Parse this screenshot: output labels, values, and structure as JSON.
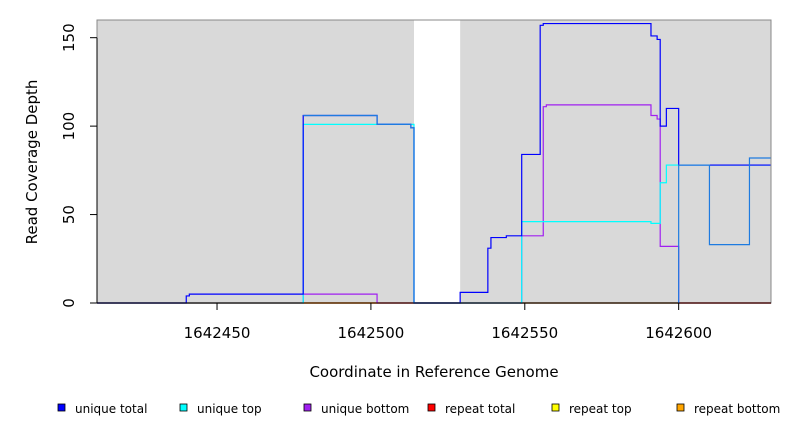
{
  "chart_data": {
    "type": "line",
    "title": "",
    "xlabel": "Coordinate in Reference Genome",
    "ylabel": "Read Coverage Depth",
    "xlim": [
      1642411,
      1642630
    ],
    "ylim": [
      0,
      160
    ],
    "xticks": [
      1642450,
      1642500,
      1642550,
      1642600
    ],
    "xtick_labels": [
      "1642450",
      "1642500",
      "1642550",
      "1642600"
    ],
    "yticks": [
      0,
      50,
      100,
      150
    ],
    "ytick_labels": [
      "0",
      "50",
      "100",
      "150"
    ],
    "grid": false,
    "legend_position": "bottom",
    "plot_background": "#d9d9d9",
    "gap_regions": [
      [
        1642514,
        1642529
      ]
    ],
    "series": [
      {
        "name": "unique total",
        "color": "#0000ff",
        "x": [
          1642411,
          1642440,
          1642441,
          1642478,
          1642502,
          1642513,
          1642514,
          1642529,
          1642538,
          1642539,
          1642544,
          1642549,
          1642555,
          1642556,
          1642591,
          1642593,
          1642594,
          1642596,
          1642600,
          1642630
        ],
        "y": [
          0,
          4,
          5,
          106,
          101,
          99,
          0,
          6,
          31,
          37,
          38,
          84,
          157,
          158,
          151,
          149,
          100,
          110,
          78,
          78
        ]
      },
      {
        "name": "unique top",
        "color": "#00ffff",
        "x": [
          1642411,
          1642478,
          1642502,
          1642514,
          1642549,
          1642591,
          1642594,
          1642596,
          1642630
        ],
        "y": [
          0,
          101,
          101,
          0,
          46,
          45,
          68,
          78,
          78
        ]
      },
      {
        "name": "unique bottom",
        "color": "#a020f0",
        "x": [
          1642411,
          1642478,
          1642502,
          1642514,
          1642549,
          1642556,
          1642557,
          1642591,
          1642593,
          1642594,
          1642600,
          1642630
        ],
        "y": [
          0,
          5,
          0,
          0,
          38,
          111,
          112,
          106,
          104,
          32,
          0,
          0
        ]
      },
      {
        "name": "repeat total",
        "color": "#ff0000",
        "x": [
          1642411,
          1642630
        ],
        "y": [
          0,
          0
        ]
      },
      {
        "name": "repeat top",
        "color": "#ffff00",
        "x": [
          1642411,
          1642630
        ],
        "y": [
          0,
          0
        ]
      },
      {
        "name": "repeat bottom",
        "color": "#ffa500",
        "x": [
          1642411,
          1642630
        ],
        "y": [
          0,
          0
        ]
      }
    ],
    "extra_trace": {
      "color": "#1e7be0",
      "x": [
        1642478,
        1642502,
        1642513,
        1642514,
        1642600,
        1642610,
        1642623,
        1642630
      ],
      "y": [
        106,
        101,
        99,
        0,
        78,
        33,
        82,
        82
      ]
    }
  }
}
